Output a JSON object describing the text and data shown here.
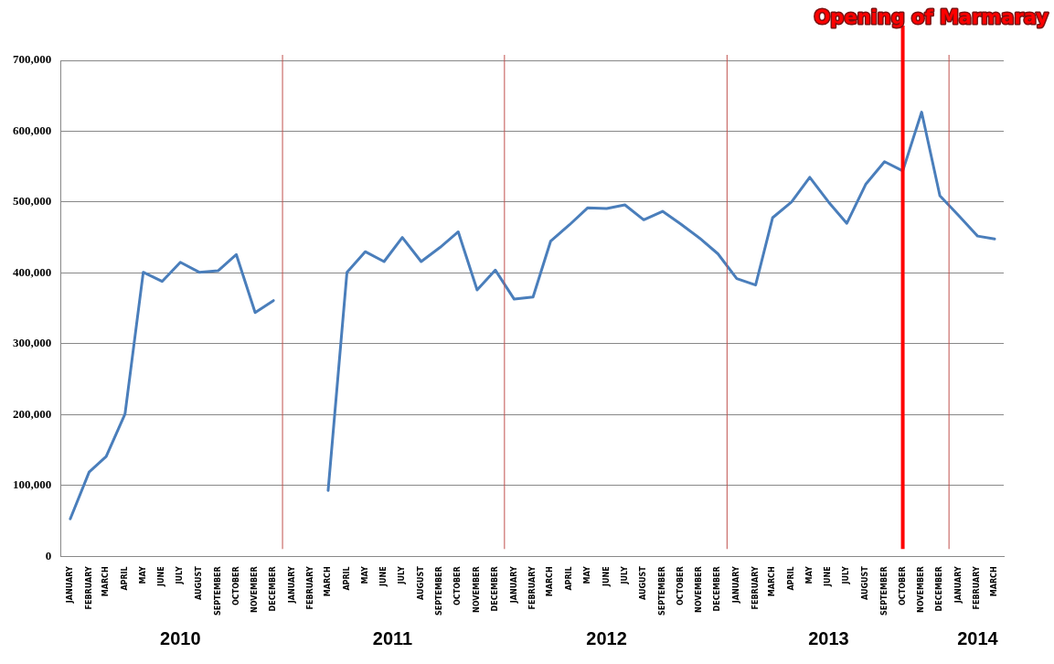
{
  "chart_data": {
    "type": "line",
    "x": [
      "2010-01",
      "2010-02",
      "2010-03",
      "2010-04",
      "2010-05",
      "2010-06",
      "2010-07",
      "2010-08",
      "2010-09",
      "2010-10",
      "2010-11",
      "2010-12",
      "2011-01",
      "2011-02",
      "2011-03",
      "2011-04",
      "2011-05",
      "2011-06",
      "2011-07",
      "2011-08",
      "2011-09",
      "2011-10",
      "2011-11",
      "2011-12",
      "2012-01",
      "2012-02",
      "2012-03",
      "2012-04",
      "2012-05",
      "2012-06",
      "2012-07",
      "2012-08",
      "2012-09",
      "2012-10",
      "2012-11",
      "2012-12",
      "2013-01",
      "2013-02",
      "2013-03",
      "2013-04",
      "2013-05",
      "2013-06",
      "2013-07",
      "2013-08",
      "2013-09",
      "2013-10",
      "2013-11",
      "2013-12",
      "2014-01",
      "2014-02",
      "2014-03"
    ],
    "series": [
      {
        "color": "#4a7ebb",
        "values": [
          53000,
          119000,
          141000,
          201000,
          401000,
          388000,
          415000,
          401000,
          403000,
          426000,
          344000,
          361000,
          null,
          null,
          93000,
          401000,
          430000,
          416000,
          450000,
          416000,
          436000,
          458000,
          376000,
          404000,
          363000,
          366000,
          445000,
          468000,
          492000,
          491000,
          496000,
          475000,
          487000,
          469000,
          449000,
          427000,
          392000,
          383000,
          478000,
          500000,
          535000,
          500000,
          470000,
          525000,
          557000,
          544000,
          627000,
          509000,
          481000,
          452000,
          448000
        ]
      }
    ],
    "xlim": [
      "2009-12-16",
      "2014-03-16"
    ],
    "xticks": [
      {
        "value": "2010-01",
        "label": "JANUARY"
      },
      {
        "value": "2010-02",
        "label": "FEBRUARY"
      },
      {
        "value": "2010-03",
        "label": "MARCH"
      },
      {
        "value": "2010-04",
        "label": "APRIL"
      },
      {
        "value": "2010-05",
        "label": "MAY"
      },
      {
        "value": "2010-06",
        "label": "JUNE"
      },
      {
        "value": "2010-07",
        "label": "JULY"
      },
      {
        "value": "2010-08",
        "label": "AUGUST"
      },
      {
        "value": "2010-09",
        "label": "SEPTEMBER"
      },
      {
        "value": "2010-10",
        "label": "OCTOBER"
      },
      {
        "value": "2010-11",
        "label": "NOVEMBER"
      },
      {
        "value": "2010-12",
        "label": "DECEMBER"
      },
      {
        "value": "2011-01",
        "label": "JANUARY"
      },
      {
        "value": "2011-02",
        "label": "FEBRUARY"
      },
      {
        "value": "2011-03",
        "label": "MARCH"
      },
      {
        "value": "2011-04",
        "label": "APRIL"
      },
      {
        "value": "2011-05",
        "label": "MAY"
      },
      {
        "value": "2011-06",
        "label": "JUNE"
      },
      {
        "value": "2011-07",
        "label": "JULY"
      },
      {
        "value": "2011-08",
        "label": "AUGUST"
      },
      {
        "value": "2011-09",
        "label": "SEPTEMBER"
      },
      {
        "value": "2011-10",
        "label": "OCTOBER"
      },
      {
        "value": "2011-11",
        "label": "NOVEMBER"
      },
      {
        "value": "2011-12",
        "label": "DECEMBER"
      },
      {
        "value": "2012-01",
        "label": "JANUARY"
      },
      {
        "value": "2012-02",
        "label": "FEBRUARY"
      },
      {
        "value": "2012-03",
        "label": "MARCH"
      },
      {
        "value": "2012-04",
        "label": "APRIL"
      },
      {
        "value": "2012-05",
        "label": "MAY"
      },
      {
        "value": "2012-06",
        "label": "JUNE"
      },
      {
        "value": "2012-07",
        "label": "JULY"
      },
      {
        "value": "2012-08",
        "label": "AUGUST"
      },
      {
        "value": "2012-09",
        "label": "SEPTEMBER"
      },
      {
        "value": "2012-10",
        "label": "OCTOBER"
      },
      {
        "value": "2012-11",
        "label": "NOVEMBER"
      },
      {
        "value": "2012-12",
        "label": "DECEMBER"
      },
      {
        "value": "2013-01",
        "label": "JANUARY"
      },
      {
        "value": "2013-02",
        "label": "FEBRUARY"
      },
      {
        "value": "2013-03",
        "label": "MARCH"
      },
      {
        "value": "2013-04",
        "label": "APRIL"
      },
      {
        "value": "2013-05",
        "label": "MAY"
      },
      {
        "value": "2013-06",
        "label": "JUNE"
      },
      {
        "value": "2013-07",
        "label": "JULY"
      },
      {
        "value": "2013-08",
        "label": "AUGUST"
      },
      {
        "value": "2013-09",
        "label": "SEPTEMBER"
      },
      {
        "value": "2013-10",
        "label": "OCTOBER"
      },
      {
        "value": "2013-11",
        "label": "NOVEMBER"
      },
      {
        "value": "2013-12",
        "label": "DECEMBER"
      },
      {
        "value": "2014-01",
        "label": "JANUARY"
      },
      {
        "value": "2014-02",
        "label": "FEBRUARY"
      },
      {
        "value": "2014-03",
        "label": "MARCH"
      }
    ],
    "x2lim": [
      "2009-12-16",
      "2014-03-16"
    ],
    "x2ticks": [
      {
        "value": "2010-07",
        "label": "2010"
      },
      {
        "value": "2011-06-15",
        "label": "2011"
      },
      {
        "value": "2012-06",
        "label": "2012"
      },
      {
        "value": "2013-06",
        "label": "2013"
      },
      {
        "value": "2014-02",
        "label": "2014"
      }
    ],
    "ylim": [
      0,
      700000
    ],
    "yticks": [
      {
        "value": 0,
        "label": "0"
      },
      {
        "value": 100000,
        "label": "100,000"
      },
      {
        "value": 200000,
        "label": "200,000"
      },
      {
        "value": 300000,
        "label": "300,000"
      },
      {
        "value": 400000,
        "label": "400,000"
      },
      {
        "value": 500000,
        "label": "500,000"
      },
      {
        "value": 600000,
        "label": "600,000"
      },
      {
        "value": 700000,
        "label": "700,000"
      }
    ],
    "ref_lines": [
      {
        "axis": "x",
        "value": "2010-12-16",
        "color": "#c0504d"
      },
      {
        "axis": "x",
        "value": "2011-12-16",
        "color": "#c0504d"
      },
      {
        "axis": "x",
        "value": "2012-12-16",
        "color": "#c0504d"
      },
      {
        "axis": "x",
        "value": "2013-12-16",
        "color": "#c0504d"
      },
      {
        "axis": "x",
        "value": "2013-10",
        "color": "#ff0000",
        "label": "Opening of Marmaray"
      }
    ],
    "grid": "y",
    "legend": false,
    "marker": "none",
    "line_style": "solid"
  }
}
